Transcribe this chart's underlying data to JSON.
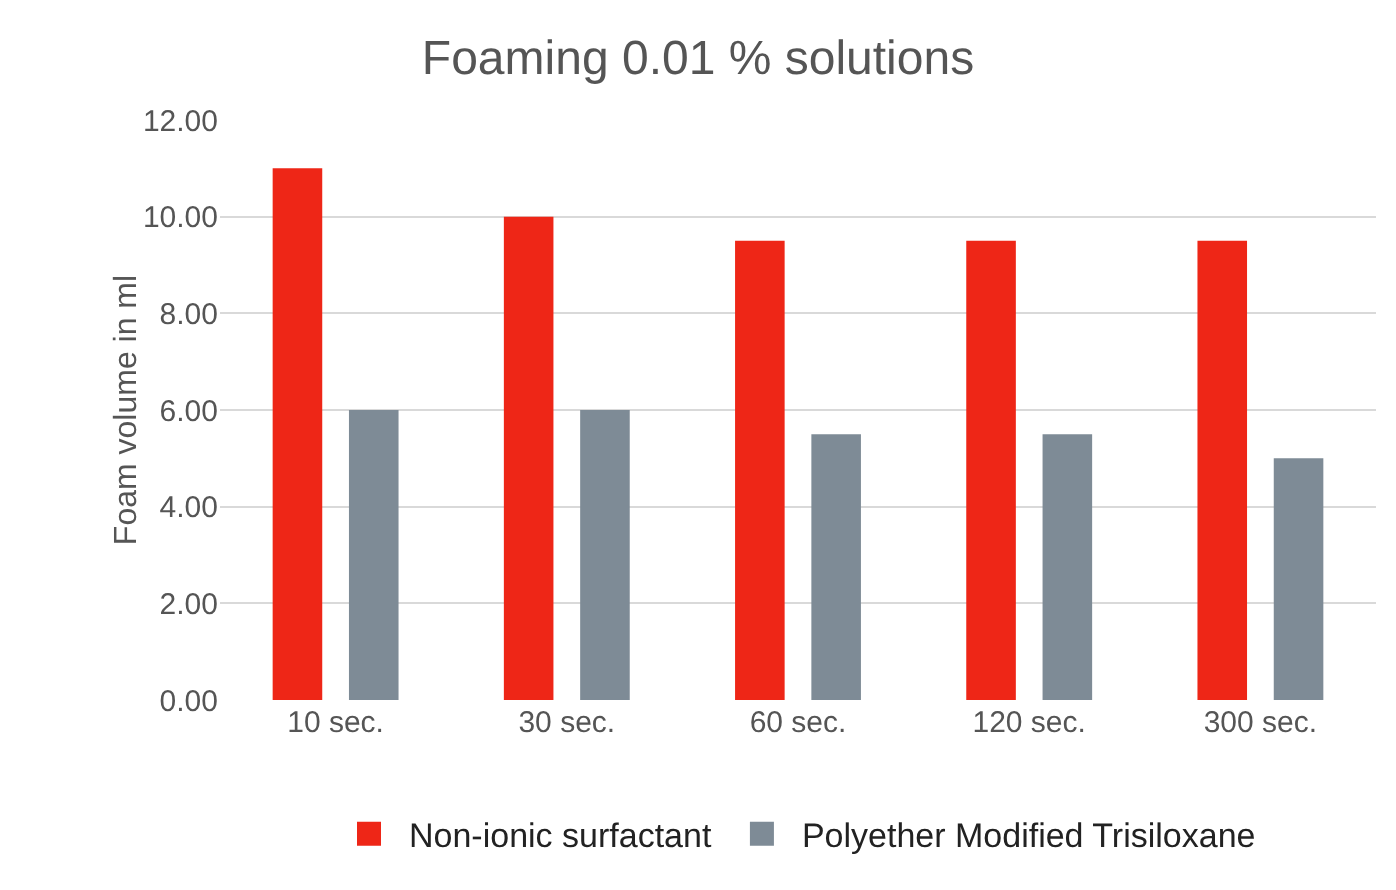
{
  "chart_data": {
    "type": "bar",
    "title": "Foaming 0.01 % solutions",
    "ylabel": "Foam volume in ml",
    "categories": [
      "10 sec.",
      "30 sec.",
      "60 sec.",
      "120 sec.",
      "300 sec."
    ],
    "series": [
      {
        "name": "Non-ionic surfactant",
        "color": "#ee2617",
        "values": [
          11,
          10,
          9.5,
          9.5,
          9.5
        ]
      },
      {
        "name": "Polyether Modified Trisiloxane",
        "color": "#7e8b96",
        "values": [
          6,
          6,
          5.5,
          5.5,
          5
        ]
      }
    ],
    "ylim": [
      0,
      12
    ],
    "yticks": [
      {
        "value": 0,
        "label": "0.00"
      },
      {
        "value": 2,
        "label": "2.00"
      },
      {
        "value": 4,
        "label": "4.00"
      },
      {
        "value": 6,
        "label": "6.00"
      },
      {
        "value": 8,
        "label": "8.00"
      },
      {
        "value": 10,
        "label": "10.00"
      },
      {
        "value": 12,
        "label": "12.00"
      }
    ],
    "grid": "y",
    "legend": "bottom"
  }
}
